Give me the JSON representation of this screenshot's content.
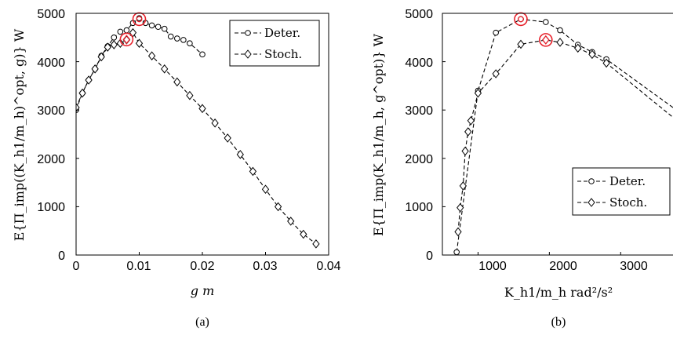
{
  "chart_data": [
    {
      "panel": "(a)",
      "type": "line",
      "xlabel": "g  m",
      "ylabel": "E{Π_imp((K_h1/m_h)^opt, g)}  W",
      "xlim": [
        0,
        0.04
      ],
      "ylim": [
        0,
        5000
      ],
      "xticks": [
        "0",
        "0.01",
        "0.02",
        "0.03",
        "0.04"
      ],
      "yticks": [
        "0",
        "1000",
        "2000",
        "3000",
        "4000",
        "5000"
      ],
      "grid": false,
      "legend_position": "top-right",
      "series": [
        {
          "name": "Deter.",
          "marker": "circle",
          "x": [
            0,
            0.001,
            0.002,
            0.003,
            0.004,
            0.005,
            0.006,
            0.007,
            0.008,
            0.009,
            0.01,
            0.011,
            0.012,
            0.013,
            0.014,
            0.015,
            0.016,
            0.017,
            0.018,
            0.02
          ],
          "y": [
            3000,
            3350,
            3620,
            3850,
            4120,
            4320,
            4500,
            4620,
            4650,
            4800,
            4900,
            4800,
            4750,
            4720,
            4680,
            4520,
            4480,
            4450,
            4380,
            4150
          ]
        },
        {
          "name": "Stoch.",
          "marker": "diamond",
          "x": [
            0,
            0.001,
            0.002,
            0.003,
            0.004,
            0.005,
            0.006,
            0.007,
            0.008,
            0.009,
            0.01,
            0.012,
            0.014,
            0.016,
            0.018,
            0.02,
            0.022,
            0.024,
            0.026,
            0.028,
            0.03,
            0.032,
            0.034,
            0.036,
            0.038
          ],
          "y": [
            3050,
            3350,
            3620,
            3850,
            4100,
            4300,
            4350,
            4380,
            4450,
            4600,
            4380,
            4120,
            3850,
            3580,
            3300,
            3030,
            2730,
            2420,
            2080,
            1730,
            1360,
            1000,
            700,
            430,
            230
          ]
        }
      ],
      "highlighted": [
        {
          "series": "Deter.",
          "x": 0.01,
          "y": 4880
        },
        {
          "series": "Stoch.",
          "x": 0.008,
          "y": 4460
        }
      ]
    },
    {
      "panel": "(b)",
      "type": "line",
      "xlabel": "K_h1/m_h  rad²/s²",
      "ylabel": "E{Π_imp(K_h1/m_h, g^opt)}  W",
      "xlim": [
        500,
        3800
      ],
      "ylim": [
        0,
        5000
      ],
      "xticks": [
        "1000",
        "2000",
        "3000"
      ],
      "yticks": [
        "0",
        "1000",
        "2000",
        "3000",
        "4000",
        "5000"
      ],
      "grid": false,
      "legend_position": "bottom-right",
      "series": [
        {
          "name": "Deter.",
          "marker": "circle",
          "x": [
            700,
            1000,
            1250,
            1600,
            1950,
            2150,
            2400,
            2600,
            2800,
            3800
          ],
          "y": [
            60,
            3400,
            4600,
            4880,
            4820,
            4650,
            4350,
            4200,
            4050,
            2980
          ]
        },
        {
          "name": "Stoch.",
          "marker": "diamond",
          "x": [
            720,
            750,
            790,
            820,
            860,
            900,
            1000,
            1250,
            1600,
            1950,
            2150,
            2400,
            2600,
            2800,
            3800
          ],
          "y": [
            480,
            980,
            1430,
            2150,
            2550,
            2780,
            3350,
            3750,
            4360,
            4450,
            4400,
            4280,
            4150,
            3970,
            2770
          ]
        }
      ],
      "highlighted": [
        {
          "series": "Deter.",
          "x": 1600,
          "y": 4880
        },
        {
          "series": "Stoch.",
          "x": 1950,
          "y": 4450
        }
      ]
    }
  ],
  "legend": {
    "deter": "Deter.",
    "stoch": "Stoch."
  },
  "captions": {
    "a": "(a)",
    "b": "(b)"
  },
  "colors": {
    "lines": "#000000",
    "highlight": "#e8212b"
  }
}
